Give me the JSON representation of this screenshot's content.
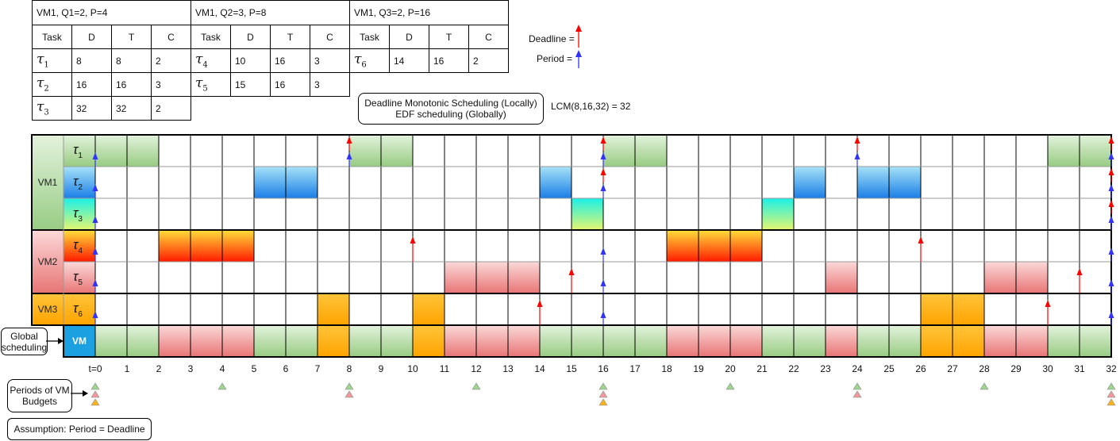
{
  "vm_tables": [
    {
      "title": "VM1, Q1=2, P=4",
      "headers": [
        "Task",
        "D",
        "T",
        "C"
      ],
      "rows": [
        {
          "task": "τ",
          "sub": "1",
          "d": "8",
          "t": "8",
          "c": "2"
        },
        {
          "task": "τ",
          "sub": "2",
          "d": "16",
          "t": "16",
          "c": "3"
        },
        {
          "task": "τ",
          "sub": "3",
          "d": "32",
          "t": "32",
          "c": "2"
        }
      ]
    },
    {
      "title": "VM1, Q2=3, P=8",
      "headers": [
        "Task",
        "D",
        "T",
        "C"
      ],
      "rows": [
        {
          "task": "τ",
          "sub": "4",
          "d": "10",
          "t": "16",
          "c": "3"
        },
        {
          "task": "τ",
          "sub": "5",
          "d": "15",
          "t": "16",
          "c": "3"
        }
      ]
    },
    {
      "title": "VM1, Q3=2, P=16",
      "headers": [
        "Task",
        "D",
        "T",
        "C"
      ],
      "rows": [
        {
          "task": "τ",
          "sub": "6",
          "d": "14",
          "t": "16",
          "c": "2"
        }
      ]
    }
  ],
  "legend": {
    "deadline": "Deadline =",
    "period": "Period ="
  },
  "scheduling_box": {
    "line1": "Deadline Monotonic Scheduling (Locally)",
    "line2": "EDF scheduling (Globally)"
  },
  "lcm_text": "LCM(8,16,32) = 32",
  "vm_labels": [
    "VM1",
    "VM2",
    "VM3"
  ],
  "global_label": "VM",
  "global_box": {
    "line1": "Global",
    "line2": "scheduling"
  },
  "periods_box": {
    "line1": "Periods of VM",
    "line2": "Budgets"
  },
  "assumption": "Assumption: Period = Deadline",
  "time_ticks": [
    "t=0",
    "1",
    "2",
    "3",
    "4",
    "5",
    "6",
    "7",
    "8",
    "9",
    "10",
    "11",
    "12",
    "13",
    "14",
    "15",
    "16",
    "17",
    "18",
    "19",
    "20",
    "21",
    "22",
    "23",
    "24",
    "25",
    "26",
    "27",
    "28",
    "29",
    "30",
    "31",
    "32"
  ],
  "colors": {
    "green": "#a3d393",
    "red": "#f08a8a",
    "orange": "#ffb31a",
    "deadline": "#ff0000",
    "period": "#3333ff",
    "vm_blue": "#1ba1e2"
  },
  "task_rows": [
    {
      "label": "τ",
      "sub": "1",
      "vm": 0,
      "style": "g1",
      "segments": [
        [
          0,
          2
        ],
        [
          8,
          10
        ],
        [
          16,
          18
        ],
        [
          30,
          32
        ]
      ],
      "deadlines": [
        8,
        16,
        24,
        32
      ],
      "periods": [
        0,
        8,
        16,
        24,
        32
      ]
    },
    {
      "label": "τ",
      "sub": "2",
      "vm": 0,
      "style": "g2",
      "segments": [
        [
          5,
          7
        ],
        [
          14,
          15
        ],
        [
          22,
          23
        ],
        [
          24,
          26
        ]
      ],
      "deadlines": [
        16,
        32
      ],
      "periods": [
        0,
        16,
        32
      ]
    },
    {
      "label": "τ",
      "sub": "3",
      "vm": 0,
      "style": "g3",
      "segments": [
        [
          15,
          16
        ],
        [
          21,
          22
        ]
      ],
      "deadlines": [
        32
      ],
      "periods": [
        0,
        32
      ]
    },
    {
      "label": "τ",
      "sub": "4",
      "vm": 1,
      "style": "g4",
      "segments": [
        [
          2,
          5
        ],
        [
          18,
          21
        ]
      ],
      "deadlines": [
        10,
        26
      ],
      "periods": [
        0,
        16,
        32
      ]
    },
    {
      "label": "τ",
      "sub": "5",
      "vm": 1,
      "style": "g5",
      "segments": [
        [
          11,
          14
        ],
        [
          23,
          24
        ],
        [
          28,
          30
        ]
      ],
      "deadlines": [
        15,
        31
      ],
      "periods": [
        0,
        16,
        32
      ]
    },
    {
      "label": "τ",
      "sub": "6",
      "vm": 2,
      "style": "g6",
      "segments": [
        [
          7,
          8
        ],
        [
          10,
          11
        ],
        [
          26,
          28
        ]
      ],
      "deadlines": [
        14,
        30
      ],
      "periods": [
        0,
        16,
        32
      ]
    }
  ],
  "global_schedule": [
    "green",
    "green",
    "red",
    "red",
    "red",
    "green",
    "green",
    "orange",
    "green",
    "green",
    "orange",
    "red",
    "red",
    "red",
    "green",
    "green",
    "green",
    "green",
    "red",
    "red",
    "red",
    "green",
    "green",
    "red",
    "green",
    "green",
    "orange",
    "orange",
    "red",
    "red",
    "green",
    "green"
  ],
  "budget_periods": {
    "green": [
      0,
      4,
      8,
      12,
      16,
      20,
      24,
      28,
      32
    ],
    "red": [
      0,
      8,
      16,
      24,
      32
    ],
    "orange": [
      0,
      16,
      32
    ]
  }
}
